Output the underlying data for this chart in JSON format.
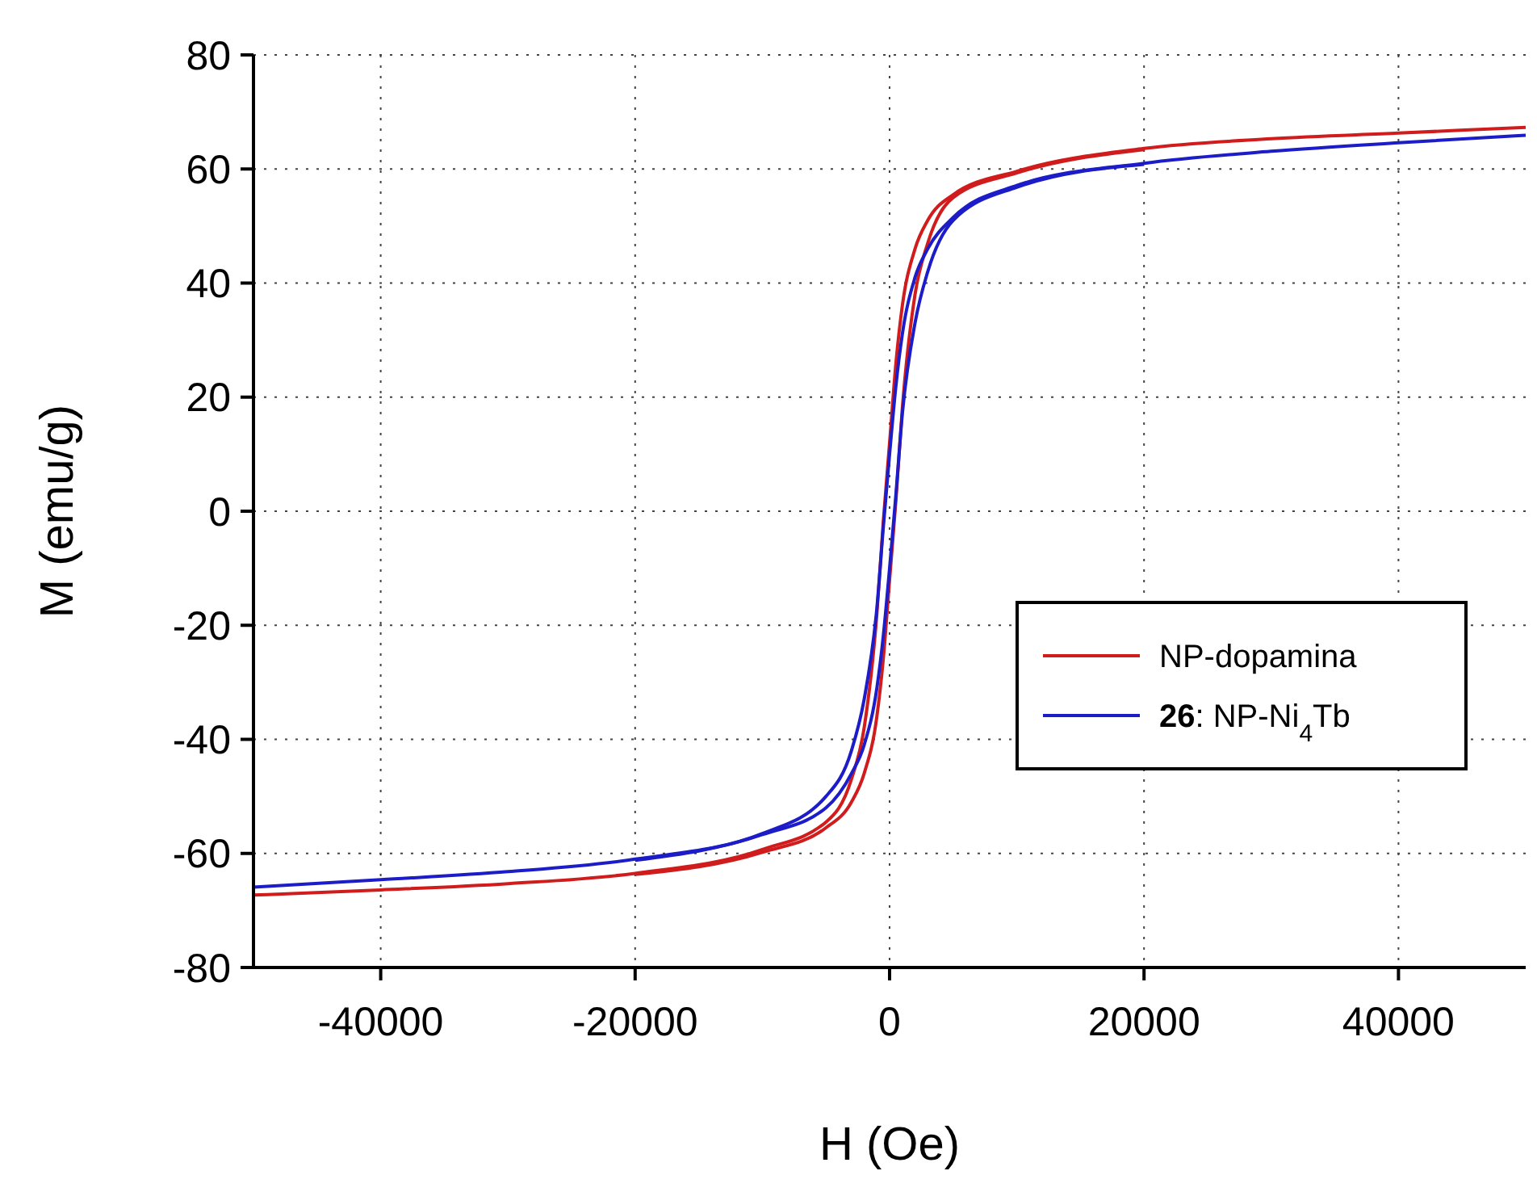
{
  "chart_data": {
    "type": "line",
    "xlabel": "H (Oe)",
    "ylabel": "M (emu/g)",
    "xlim": [
      -50000,
      50000
    ],
    "ylim": [
      -80,
      80
    ],
    "xticks": [
      -40000,
      -20000,
      0,
      20000,
      40000
    ],
    "yticks": [
      -80,
      -60,
      -40,
      -20,
      0,
      20,
      40,
      60,
      80
    ],
    "grid": true,
    "legend": "right",
    "line_style": "solid",
    "marker": "none",
    "series": [
      {
        "name": "NP-dopamina",
        "color": "#d01c1c",
        "x": [
          -50000,
          -40000,
          -30000,
          -20000,
          -10000,
          -5000,
          -3000,
          -2000,
          -1000,
          -500,
          0,
          500,
          1000,
          2000,
          3000,
          5000,
          10000,
          20000,
          30000,
          40000,
          50000
        ],
        "values": [
          -67.3,
          -66.4,
          -65.3,
          -63.5,
          -59.3,
          -54.5,
          -47,
          -38,
          -18,
          -2,
          12,
          26,
          36,
          46,
          51,
          55.5,
          59.6,
          63.6,
          65.3,
          66.3,
          67.3
        ]
      },
      {
        "color": "#d01c1c",
        "x": [
          -20000,
          -10000,
          -5000,
          -3000,
          -2000,
          -1000,
          -500,
          0,
          500,
          1000,
          2000,
          3000,
          5000,
          10000,
          20000
        ],
        "values": [
          -63.7,
          -59.8,
          -55.5,
          -51,
          -46,
          -36,
          -26,
          -12,
          2,
          18,
          38,
          47,
          55,
          59.3,
          63.4
        ]
      },
      {
        "name": "26: NP-Ni$_{4}$Tb",
        "color": "#1c1cc8",
        "x": [
          -50000,
          -40000,
          -30000,
          -20000,
          -10000,
          -5000,
          -3000,
          -2000,
          -1000,
          -500,
          0,
          500,
          1000,
          2000,
          3000,
          5000,
          10000,
          20000,
          30000,
          40000,
          50000
        ],
        "values": [
          -65.9,
          -64.6,
          -63.2,
          -61,
          -56.5,
          -50,
          -42,
          -33,
          -17,
          -3,
          10,
          22,
          31,
          41,
          46,
          51.5,
          57.1,
          61,
          63.1,
          64.6,
          65.9
        ]
      },
      {
        "color": "#1c1cc8",
        "x": [
          -20000,
          -10000,
          -5000,
          -3000,
          -2000,
          -1000,
          -500,
          0,
          500,
          1000,
          2000,
          3000,
          5000,
          10000,
          20000
        ],
        "values": [
          -61.2,
          -56.7,
          -52,
          -46,
          -41,
          -31,
          -22,
          -10,
          3,
          17,
          33,
          42,
          51,
          56.8,
          60.8
        ]
      }
    ]
  }
}
